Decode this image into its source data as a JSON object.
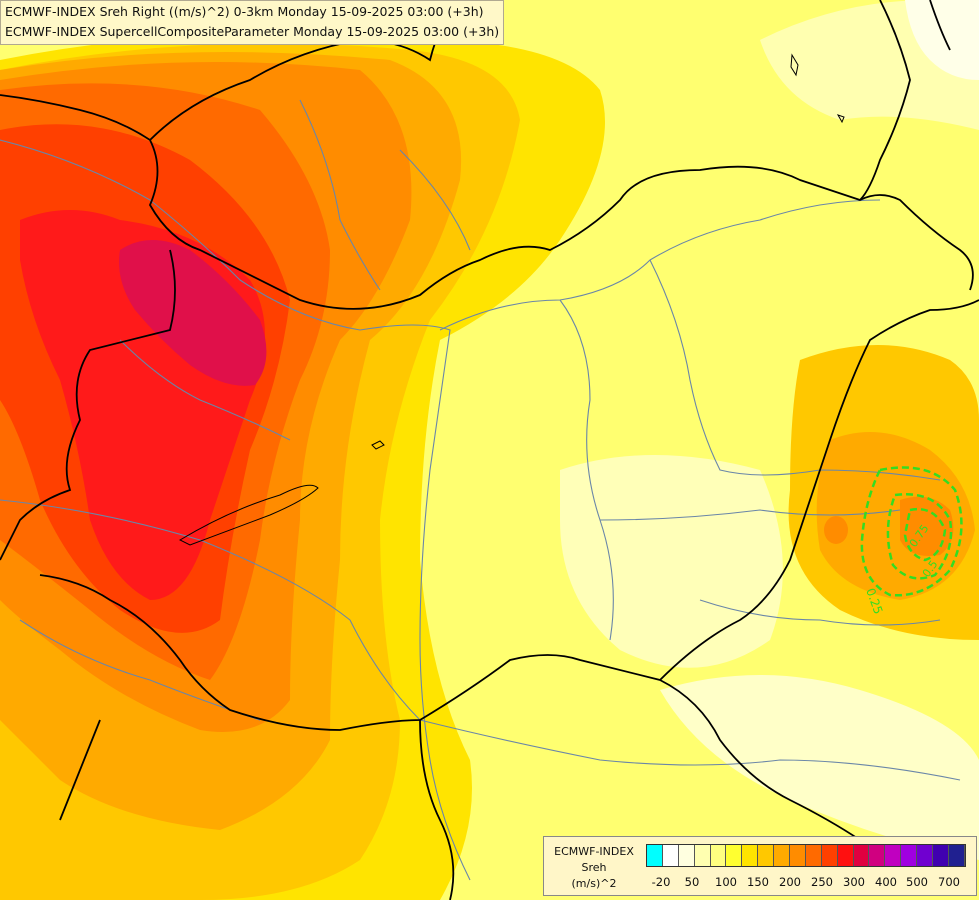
{
  "titles": {
    "line1": "ECMWF-INDEX Sreh Right ((m/s)^2) 0-3km Monday 15-09-2025 03:00 (+3h)",
    "line2": "ECMWF-INDEX SupercellCompositeParameter Monday 15-09-2025 03:00 (+3h)"
  },
  "legend": {
    "line1": "ECMWF-INDEX",
    "line2": "Sreh",
    "line3": "(m/s)^2",
    "colors": [
      "#00ffff",
      "#ffffff",
      "#ffffe0",
      "#ffffb0",
      "#ffff80",
      "#ffff30",
      "#ffe400",
      "#ffc800",
      "#ffaa00",
      "#ff8c00",
      "#ff6a00",
      "#ff4000",
      "#ff1010",
      "#e00040",
      "#d00080",
      "#c000c0",
      "#a000e0",
      "#7000d0",
      "#4000b0",
      "#202090"
    ],
    "ticks": [
      "-20",
      "50",
      "100",
      "150",
      "200",
      "250",
      "300",
      "400",
      "500",
      "700"
    ]
  },
  "contour_labels": [
    "0.25",
    "0.5",
    "0.75"
  ],
  "colors": {
    "country_border": "#000000",
    "river": "#6a86a8",
    "scp_contour": "#33dd22"
  }
}
